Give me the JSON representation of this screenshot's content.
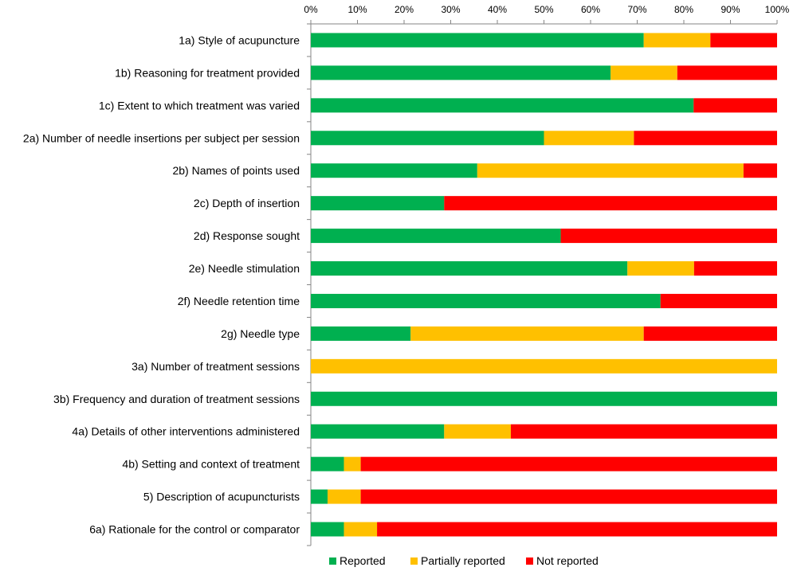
{
  "chart_data": {
    "type": "bar",
    "orientation": "horizontal",
    "stacked": true,
    "percent": true,
    "xlim": [
      0,
      100
    ],
    "x_ticks": [
      "0%",
      "10%",
      "20%",
      "30%",
      "40%",
      "50%",
      "60%",
      "70%",
      "80%",
      "90%",
      "100%"
    ],
    "x_axis_position": "top",
    "grid": false,
    "legend_position": "bottom",
    "categories": [
      "1a) Style of acupuncture",
      "1b) Reasoning for treatment provided",
      "1c) Extent to which treatment was varied",
      "2a) Number of needle insertions per subject per session",
      "2b) Names of points used",
      "2c) Depth of insertion",
      "2d) Response sought",
      "2e) Needle stimulation",
      "2f) Needle retention time",
      "2g) Needle type",
      "3a) Number of treatment sessions",
      "3b) Frequency and duration of treatment sessions",
      "4a) Details of other interventions administered",
      "4b) Setting and context of treatment",
      "5) Description of acupuncturists",
      "6a) Rationale for the control or comparator"
    ],
    "series": [
      {
        "name": "Reported",
        "color": "#00b050",
        "values": [
          71.4,
          64.3,
          82.1,
          50.0,
          35.7,
          28.6,
          53.6,
          67.9,
          75.0,
          21.4,
          0,
          100,
          28.6,
          7.1,
          3.6,
          7.1
        ]
      },
      {
        "name": "Partially reported",
        "color": "#ffc000",
        "values": [
          14.3,
          14.3,
          0,
          19.3,
          57.1,
          0,
          0,
          14.3,
          0,
          50.0,
          100,
          0,
          14.3,
          3.6,
          7.1,
          7.1
        ]
      },
      {
        "name": "Not reported",
        "color": "#ff0000",
        "values": [
          14.3,
          21.4,
          17.9,
          30.7,
          7.2,
          71.4,
          46.4,
          17.8,
          25.0,
          28.6,
          0,
          0,
          57.1,
          89.3,
          89.3,
          85.8
        ]
      }
    ]
  }
}
